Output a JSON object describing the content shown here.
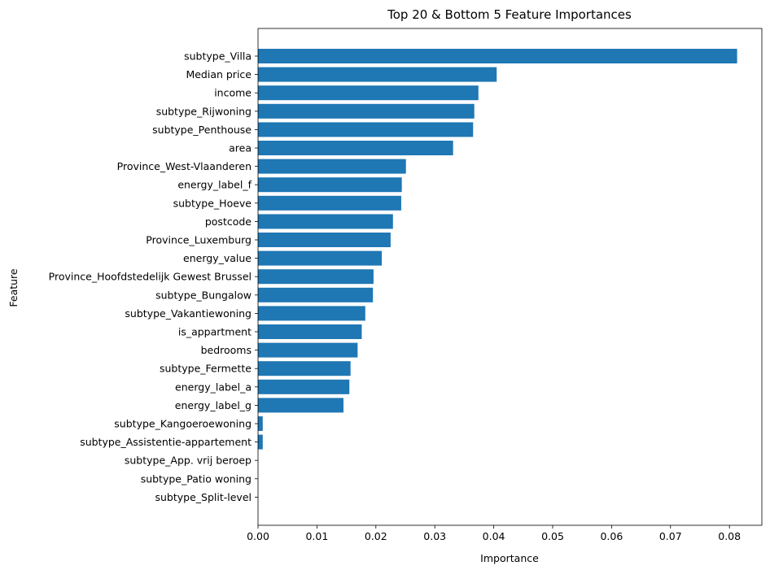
{
  "chart_data": {
    "type": "bar",
    "orientation": "horizontal",
    "title": "Top 20 & Bottom 5 Feature Importances",
    "xlabel": "Importance",
    "ylabel": "Feature",
    "xlim": [
      0,
      0.0855
    ],
    "x_ticks": [
      "0.00",
      "0.01",
      "0.02",
      "0.03",
      "0.04",
      "0.05",
      "0.06",
      "0.07",
      "0.08"
    ],
    "x_tick_values": [
      0,
      0.01,
      0.02,
      0.03,
      0.04,
      0.05,
      0.06,
      0.07,
      0.08
    ],
    "grid": false,
    "bar_color": "#1f77b4",
    "categories": [
      "subtype_Villa",
      "Median price",
      "income",
      "subtype_Rijwoning",
      "subtype_Penthouse",
      "area",
      "Province_West-Vlaanderen",
      "energy_label_f",
      "subtype_Hoeve",
      "postcode",
      "Province_Luxemburg",
      "energy_value",
      "Province_Hoofdstedelijk Gewest Brussel",
      "subtype_Bungalow",
      "subtype_Vakantiewoning",
      "is_appartment",
      "bedrooms",
      "subtype_Fermette",
      "energy_label_a",
      "energy_label_g",
      "subtype_Kangoeroewoning",
      "subtype_Assistentie-appartement",
      "subtype_App. vrij beroep",
      "subtype_Patio woning",
      "subtype_Split-level"
    ],
    "values": [
      0.0813,
      0.0405,
      0.0374,
      0.0367,
      0.0365,
      0.0331,
      0.0251,
      0.0244,
      0.0243,
      0.0229,
      0.0225,
      0.021,
      0.0196,
      0.0195,
      0.0182,
      0.0176,
      0.0169,
      0.0157,
      0.0155,
      0.0145,
      0.0008,
      0.0008,
      0.0,
      0.0,
      0.0
    ]
  }
}
